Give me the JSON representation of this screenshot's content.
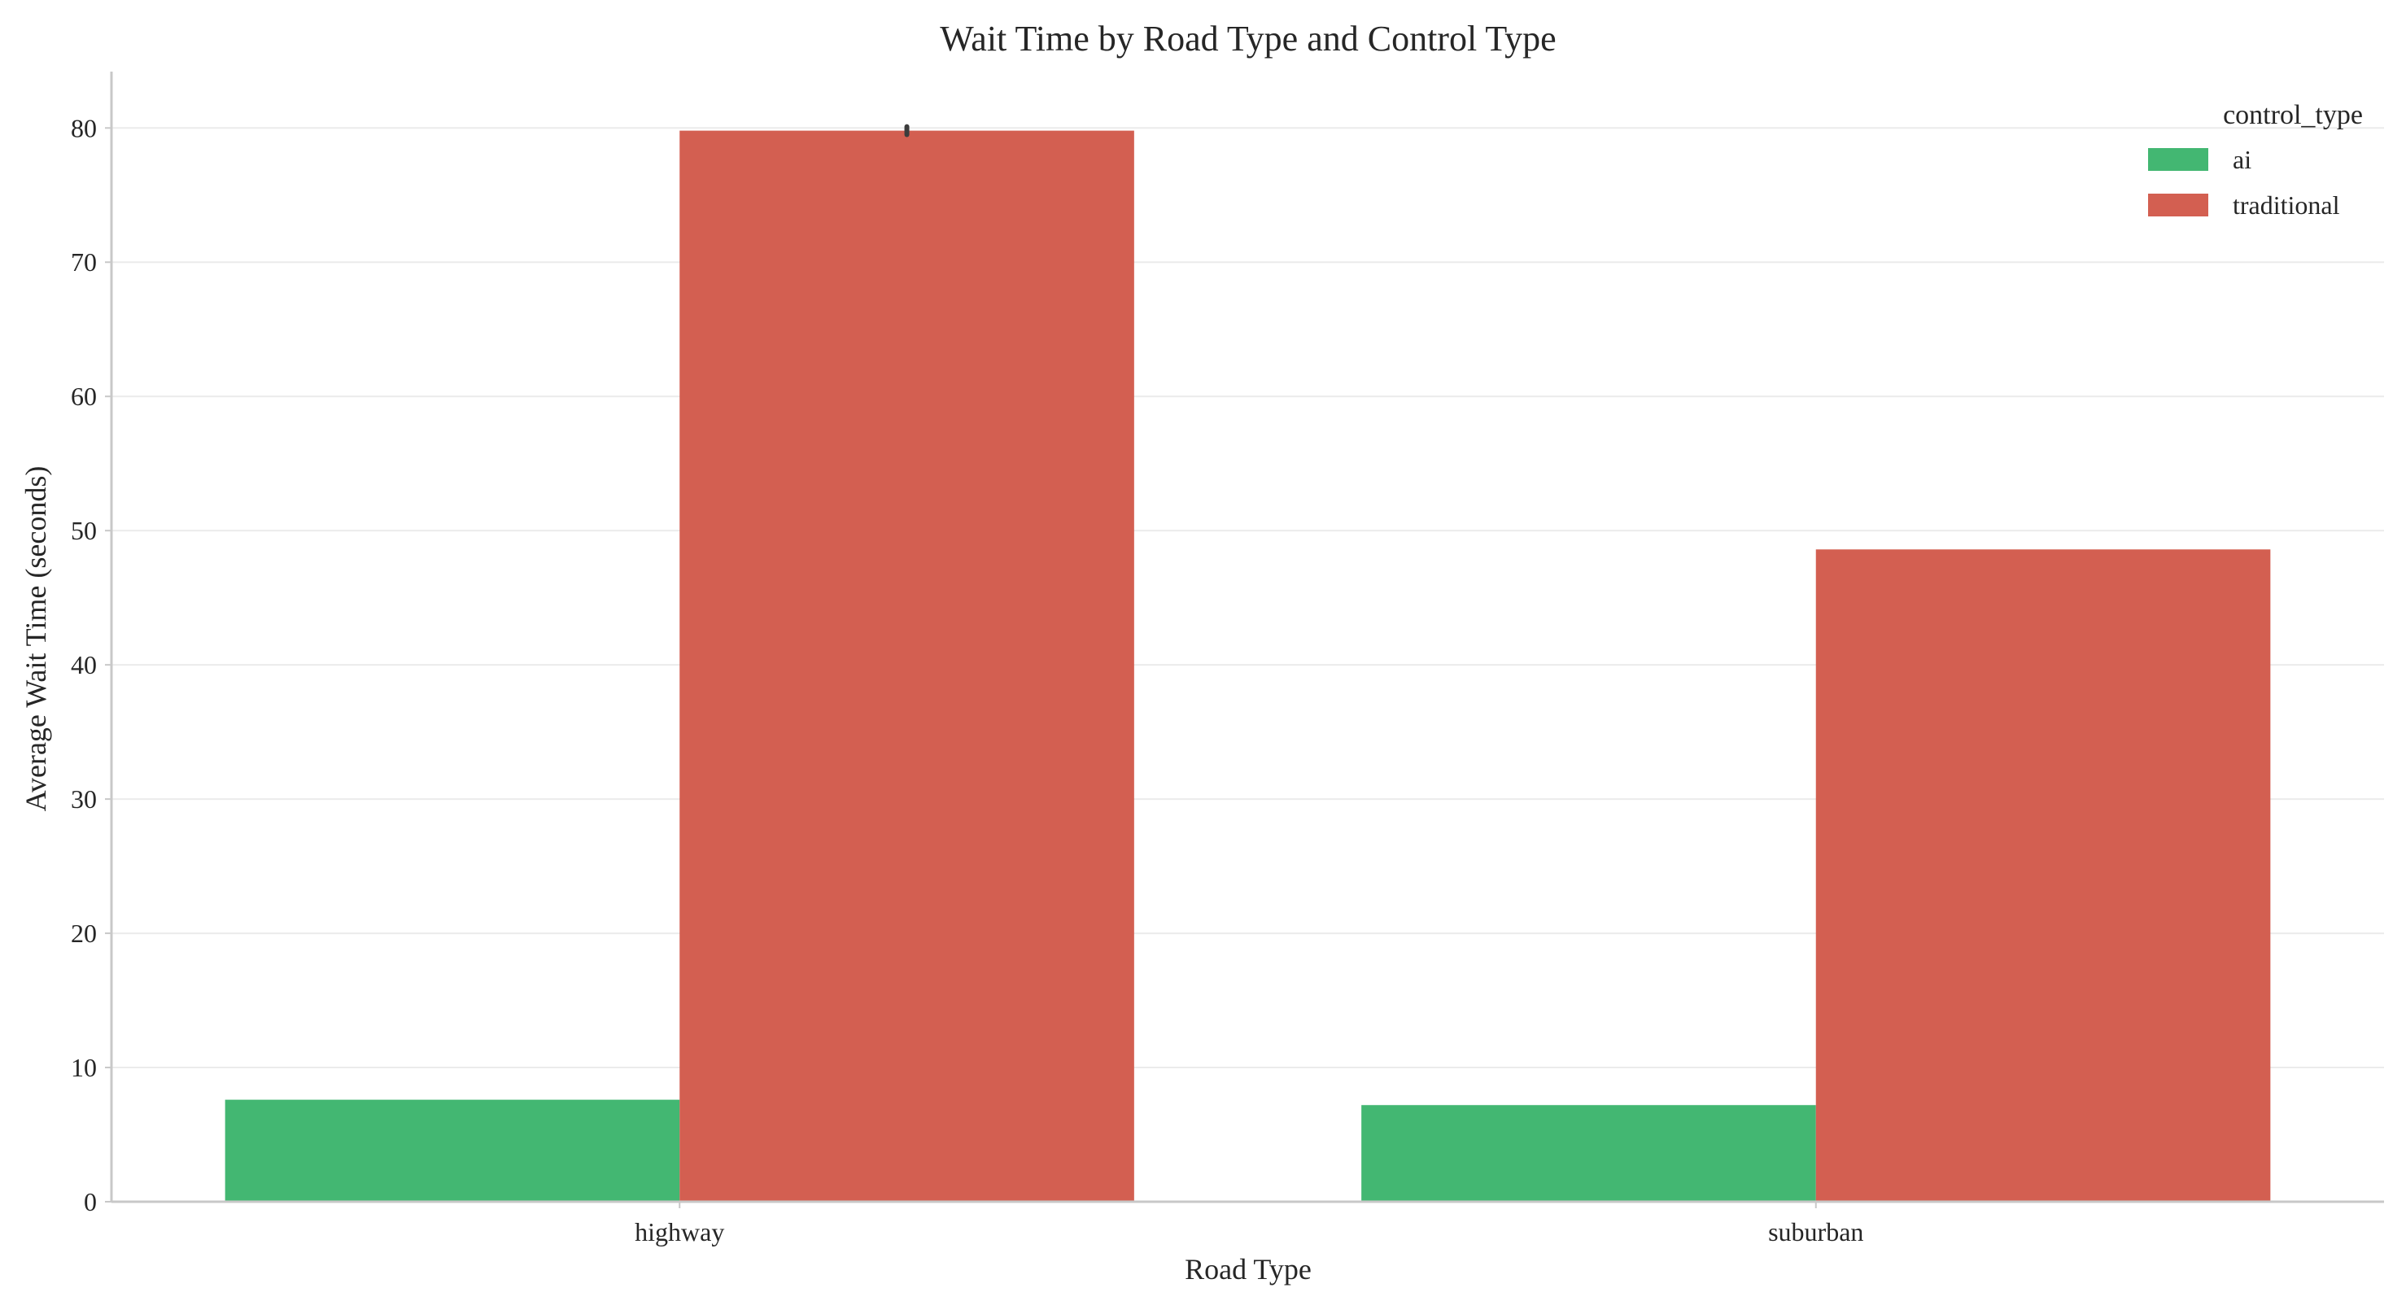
{
  "chart_data": {
    "type": "bar",
    "title": "Wait Time by Road Type and Control Type",
    "xlabel": "Road Type",
    "ylabel": "Average Wait Time (seconds)",
    "categories": [
      "highway",
      "suburban"
    ],
    "series": [
      {
        "name": "ai",
        "color": "#43b772",
        "values": [
          7.6,
          7.2
        ]
      },
      {
        "name": "traditional",
        "color": "#d35f51",
        "values": [
          79.8,
          48.6
        ]
      }
    ],
    "error_bars": {
      "traditional": [
        [
          79.5,
          80.1
        ],
        null
      ]
    },
    "ylim": [
      0,
      84.2
    ],
    "yticks": [
      "0",
      "10",
      "20",
      "30",
      "40",
      "50",
      "60",
      "70",
      "80"
    ],
    "grid": true,
    "legend": {
      "title": "control_type",
      "position": "top-right"
    }
  }
}
